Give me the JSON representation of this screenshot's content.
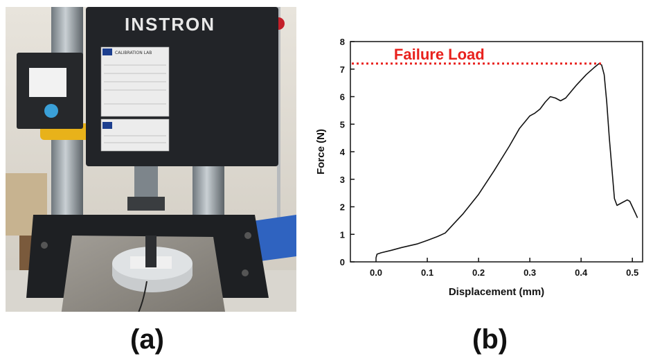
{
  "photo": {
    "brand": "INSTRON",
    "sticker_title": "CALIBRATION LAB",
    "colors": {
      "machine": "#222428",
      "column": "#9aa2a8",
      "yellow": "#e8b21a",
      "plate": "#8e8a84",
      "wall": "#e9e6df"
    }
  },
  "panel_labels": {
    "a": "(a)",
    "b": "(b)"
  },
  "chart_data": {
    "type": "line",
    "xlabel": "Displacement (mm)",
    "ylabel": "Force (N)",
    "xlim": [
      -0.05,
      0.52
    ],
    "ylim": [
      0,
      8
    ],
    "xticks": [
      0.0,
      0.1,
      0.2,
      0.3,
      0.4,
      0.5
    ],
    "xtick_labels": [
      "0.0",
      "0.1",
      "0.2",
      "0.3",
      "0.4",
      "0.5"
    ],
    "yticks": [
      0,
      1,
      2,
      3,
      4,
      5,
      6,
      7,
      8
    ],
    "ytick_labels": [
      "0",
      "1",
      "2",
      "3",
      "4",
      "5",
      "6",
      "7",
      "8"
    ],
    "grid": false,
    "line_color": "#111111",
    "series": [
      {
        "x": [
          0.0,
          0.002,
          0.01,
          0.03,
          0.05,
          0.08,
          0.1,
          0.12,
          0.135,
          0.15,
          0.17,
          0.2,
          0.23,
          0.26,
          0.28,
          0.3,
          0.31,
          0.32,
          0.33,
          0.34,
          0.35,
          0.36,
          0.37,
          0.39,
          0.41,
          0.425,
          0.435,
          0.44,
          0.445,
          0.45,
          0.455,
          0.46,
          0.465,
          0.47,
          0.48,
          0.49,
          0.495,
          0.5,
          0.505,
          0.51
        ],
        "y": [
          0.15,
          0.28,
          0.33,
          0.42,
          0.52,
          0.65,
          0.78,
          0.92,
          1.05,
          1.35,
          1.75,
          2.45,
          3.3,
          4.2,
          4.85,
          5.3,
          5.4,
          5.55,
          5.8,
          6.0,
          5.95,
          5.85,
          5.95,
          6.4,
          6.8,
          7.05,
          7.2,
          7.15,
          6.8,
          5.8,
          4.5,
          3.4,
          2.3,
          2.05,
          2.15,
          2.25,
          2.2,
          2.0,
          1.8,
          1.6
        ]
      }
    ],
    "annotations": [
      {
        "text": "Failure Load",
        "y": 7.2,
        "x_start": -0.05,
        "x_end": 0.44,
        "color": "#e8211d",
        "style": "dotted"
      }
    ]
  }
}
